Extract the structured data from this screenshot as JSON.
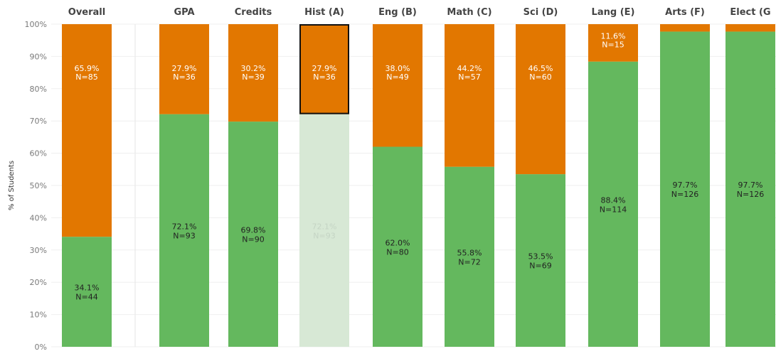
{
  "chart_data": {
    "type": "bar",
    "stacked": true,
    "ylabel": "% of Students",
    "ylim": [
      0,
      100
    ],
    "yticks": [
      "0%",
      "10%",
      "20%",
      "30%",
      "40%",
      "50%",
      "60%",
      "70%",
      "80%",
      "90%",
      "100%"
    ],
    "grid": true,
    "categories": [
      "Overall",
      "GPA",
      "Credits",
      "Hist (A)",
      "Eng (B)",
      "Math (C)",
      "Sci (D)",
      "Lang (E)",
      "Arts (F)",
      "Elect (G"
    ],
    "series": [
      {
        "color": "#64b85e",
        "values": [
          34.1,
          72.1,
          69.8,
          72.1,
          62.0,
          55.8,
          53.5,
          88.4,
          97.7,
          97.7
        ],
        "labels": [
          "34.1%",
          "72.1%",
          "69.8%",
          "72.1%",
          "62.0%",
          "55.8%",
          "53.5%",
          "88.4%",
          "97.7%",
          "97.7%"
        ],
        "counts": [
          "N=44",
          "N=93",
          "N=90",
          "N=93",
          "N=80",
          "N=72",
          "N=69",
          "N=114",
          "N=126",
          "N=126"
        ]
      },
      {
        "color": "#e27700",
        "values": [
          65.9,
          27.9,
          30.2,
          27.9,
          38.0,
          44.2,
          46.5,
          11.6,
          2.3,
          2.3
        ],
        "labels": [
          "65.9%",
          "27.9%",
          "30.2%",
          "27.9%",
          "38.0%",
          "44.2%",
          "46.5%",
          "11.6%",
          "",
          ""
        ],
        "counts": [
          "N=85",
          "N=36",
          "N=39",
          "N=36",
          "N=49",
          "N=57",
          "N=60",
          "N=15",
          "",
          ""
        ]
      }
    ],
    "highlight": {
      "category_index": 3,
      "series_index": 1,
      "faded_color": "#d7e8d5",
      "outline_color": "#111111"
    }
  }
}
